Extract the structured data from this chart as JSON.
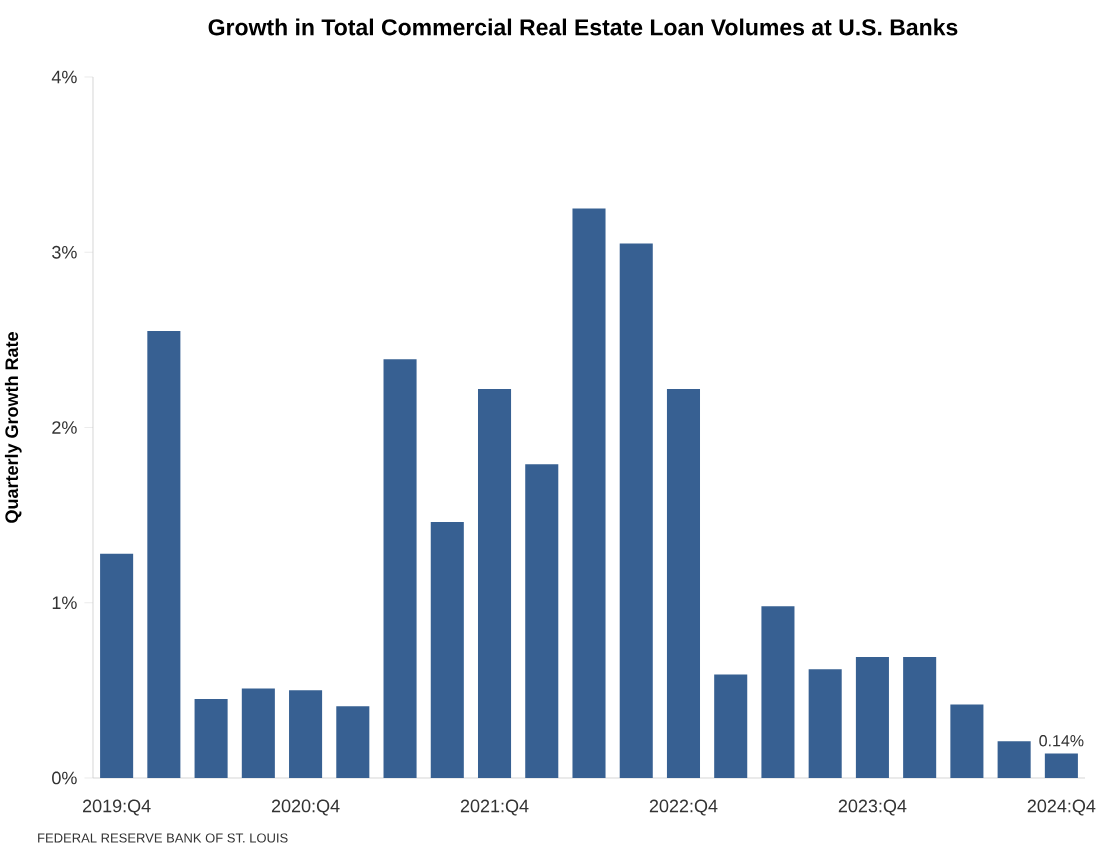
{
  "chart_data": {
    "type": "bar",
    "title": "Growth in Total Commercial Real Estate Loan Volumes at U.S. Banks",
    "ylabel": "Quarterly Growth Rate",
    "categories": [
      "2019:Q4",
      null,
      null,
      null,
      "2020:Q4",
      null,
      null,
      null,
      "2021:Q4",
      null,
      null,
      null,
      "2022:Q4",
      null,
      null,
      null,
      "2023:Q4",
      null,
      null,
      null,
      "2024:Q4"
    ],
    "values": [
      1.28,
      2.55,
      0.45,
      0.51,
      0.5,
      0.41,
      2.39,
      1.46,
      2.22,
      1.79,
      3.25,
      3.05,
      2.22,
      0.59,
      0.98,
      0.62,
      0.69,
      0.69,
      0.42,
      0.21,
      0.14
    ],
    "value_labels": [
      null,
      null,
      null,
      null,
      null,
      null,
      null,
      null,
      null,
      null,
      null,
      null,
      null,
      null,
      null,
      null,
      null,
      null,
      null,
      null,
      "0.14%"
    ],
    "color": "#376092",
    "ylim": [
      0,
      4
    ],
    "yticks": [
      {
        "value": 0,
        "label": "0%"
      },
      {
        "value": 1,
        "label": "1%"
      },
      {
        "value": 2,
        "label": "2%"
      },
      {
        "value": 3,
        "label": "3%"
      },
      {
        "value": 4,
        "label": "4%"
      }
    ],
    "grid": false,
    "annotations": [
      "FEDERAL RESERVE BANK OF ST. LOUIS"
    ]
  }
}
